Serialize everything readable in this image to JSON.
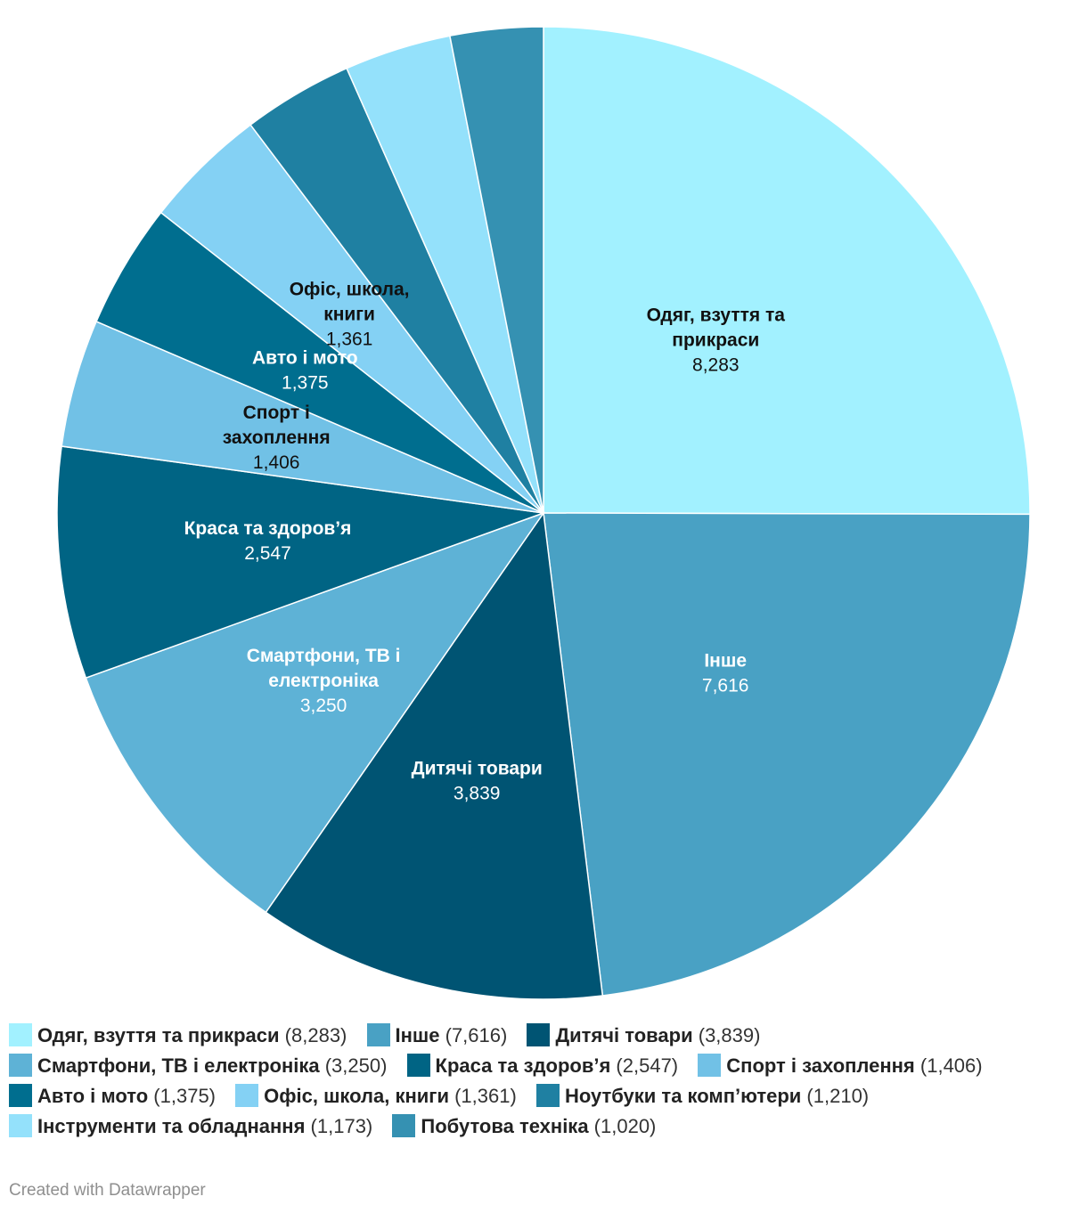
{
  "chart_data": {
    "type": "pie",
    "title": "",
    "slices": [
      {
        "name": "Одяг, взуття та прикраси",
        "display_name": "Одяг, взуття та\nприкраси",
        "value": 8283,
        "value_label": "8,283",
        "color": "#a2f1ff",
        "text_color": "#111111",
        "label_shown": true
      },
      {
        "name": "Інше",
        "display_name": "Інше",
        "value": 7616,
        "value_label": "7,616",
        "color": "#49a1c4",
        "text_color": "#ffffff",
        "label_shown": true
      },
      {
        "name": "Дитячі товари",
        "display_name": "Дитячі товари",
        "value": 3839,
        "value_label": "3,839",
        "color": "#005473",
        "text_color": "#ffffff",
        "label_shown": true
      },
      {
        "name": "Смартфони, ТВ і електроніка",
        "display_name": "Смартфони, ТВ і\nелектроніка",
        "value": 3250,
        "value_label": "3,250",
        "color": "#5eb2d6",
        "text_color": "#ffffff",
        "label_shown": true
      },
      {
        "name": "Краса та здоров’я",
        "display_name": "Краса та здоров’я",
        "value": 2547,
        "value_label": "2,547",
        "color": "#006484",
        "text_color": "#ffffff",
        "label_shown": true
      },
      {
        "name": "Спорт і захоплення",
        "display_name": "Спорт і\nзахоплення",
        "value": 1406,
        "value_label": "1,406",
        "color": "#71c1e6",
        "text_color": "#111111",
        "label_shown": true
      },
      {
        "name": "Авто і мото",
        "display_name": "Авто і мото",
        "value": 1375,
        "value_label": "1,375",
        "color": "#006e8f",
        "text_color": "#ffffff",
        "label_shown": true
      },
      {
        "name": "Офіс, школа, книги",
        "display_name": "Офіс, школа,\nкниги",
        "value": 1361,
        "value_label": "1,361",
        "color": "#84d1f4",
        "text_color": "#111111",
        "label_shown": true
      },
      {
        "name": "Ноутбуки та комп’ютери",
        "display_name": "Ноутбуки та комп’ютери",
        "value": 1210,
        "value_label": "1,210",
        "color": "#1f80a2",
        "text_color": "#ffffff",
        "label_shown": false
      },
      {
        "name": "Інструменти та обладнання",
        "display_name": "Інструменти та обладнання",
        "value": 1173,
        "value_label": "1,173",
        "color": "#94e1fb",
        "text_color": "#111111",
        "label_shown": false
      },
      {
        "name": "Побутова техніка",
        "display_name": "Побутова техніка",
        "value": 1020,
        "value_label": "1,020",
        "color": "#3591b2",
        "text_color": "#ffffff",
        "label_shown": false
      }
    ],
    "legend_position": "bottom"
  },
  "footer": {
    "text": "Created with Datawrapper"
  }
}
